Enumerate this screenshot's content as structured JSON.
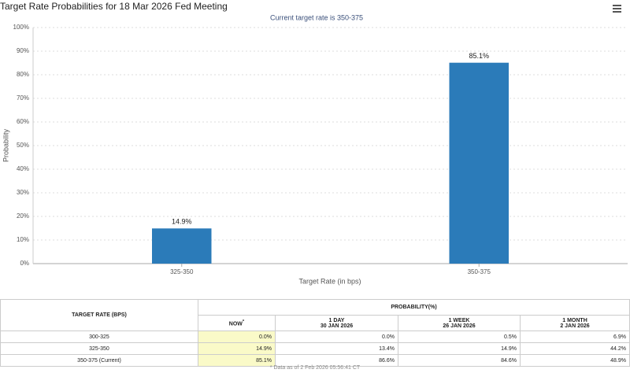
{
  "chart_data": {
    "type": "bar",
    "title": "Target Rate Probabilities for 18 Mar 2026 Fed Meeting",
    "subtitle": "Current target rate is 350-375",
    "x_label": "Target Rate (in bps)",
    "y_label": "Probability",
    "categories": [
      "325-350",
      "350-375"
    ],
    "values": [
      14.9,
      85.1
    ],
    "value_labels": [
      "14.9%",
      "85.1%"
    ],
    "color": "#2b7bb9",
    "ylim": [
      0,
      100
    ],
    "yticks": [
      {
        "value": 0,
        "label": "0%"
      },
      {
        "value": 10,
        "label": "10%"
      },
      {
        "value": 20,
        "label": "20%"
      },
      {
        "value": 30,
        "label": "30%"
      },
      {
        "value": 40,
        "label": "40%"
      },
      {
        "value": 50,
        "label": "50%"
      },
      {
        "value": 60,
        "label": "60%"
      },
      {
        "value": 70,
        "label": "70%"
      },
      {
        "value": 80,
        "label": "80%"
      },
      {
        "value": 90,
        "label": "90%"
      },
      {
        "value": 100,
        "label": "100%"
      }
    ],
    "grid": true
  },
  "table": {
    "header": {
      "rate": "TARGET RATE (BPS)",
      "probability": "PROBABILITY(%)",
      "columns": [
        {
          "name": "NOW",
          "mark": "*"
        },
        {
          "name": "1 DAY",
          "date": "30 JAN 2026"
        },
        {
          "name": "1 WEEK",
          "date": "26 JAN 2026"
        },
        {
          "name": "1 MONTH",
          "date": "2 JAN 2026"
        }
      ]
    },
    "rows": [
      [
        "300-325",
        "0.0%",
        "0.0%",
        "0.5%",
        "6.9%"
      ],
      [
        "325-350",
        "14.9%",
        "13.4%",
        "14.9%",
        "44.2%"
      ],
      [
        "350-375 (Current)",
        "85.1%",
        "86.6%",
        "84.6%",
        "48.9%"
      ]
    ],
    "footnote": "* Data as of 2 Feb 2026 05:56:41 CT"
  }
}
